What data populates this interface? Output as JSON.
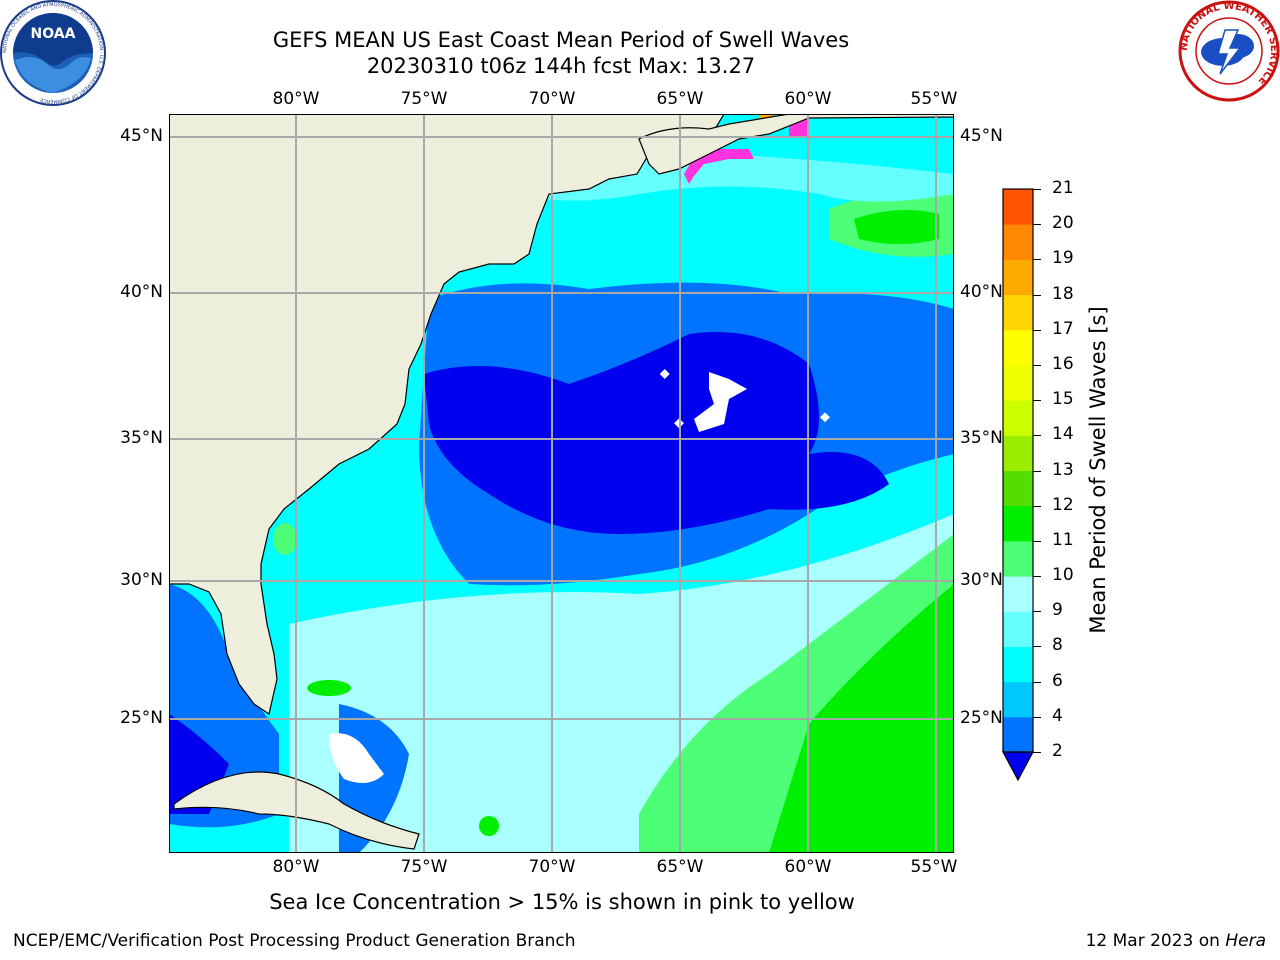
{
  "title": {
    "line1": "GEFS MEAN US East Coast Mean Period of Swell Waves",
    "line2": "20230310 t06z 144h fcst   Max: 13.27"
  },
  "map": {
    "lon_labels": [
      "80°W",
      "75°W",
      "70°W",
      "65°W",
      "60°W",
      "55°W"
    ],
    "lat_labels": [
      "45°N",
      "40°N",
      "35°N",
      "30°N",
      "25°N"
    ],
    "colors": {
      "land": "#eeeedd",
      "grid": "#a8a8a8",
      "no_data": "#ffffff",
      "sea_ice": "#ff33dd"
    }
  },
  "colorbar": {
    "label": "Mean Period of Swell Waves [s]",
    "ticks": [
      "2",
      "4",
      "6",
      "8",
      "9",
      "10",
      "11",
      "12",
      "13",
      "14",
      "15",
      "16",
      "17",
      "18",
      "19",
      "20",
      "21"
    ],
    "colors": [
      "#0073ff",
      "#00c8ff",
      "#00fdff",
      "#66ffff",
      "#aaffff",
      "#4dff77",
      "#00ee00",
      "#55dd00",
      "#99ee00",
      "#ccff00",
      "#eeff00",
      "#ffff00",
      "#ffd500",
      "#ffaa00",
      "#ff8800",
      "#ff5500",
      "#ff2200",
      "#ff0000"
    ],
    "under_color": "#0000ee"
  },
  "note": "Sea Ice Concentration > 15% is shown in pink to yellow",
  "footer": {
    "left": "NCEP/EMC/Verification Post Processing Product Generation Branch",
    "right_prefix": "12 Mar 2023 on ",
    "right_host": "Hera"
  },
  "logos": {
    "noaa": "NOAA",
    "noaa_ring": "NATIONAL OCEANIC AND ATMOSPHERIC ADMINISTRATION · U.S. DEPARTMENT OF COMMERCE",
    "nws_ring": "NATIONAL WEATHER SERVICE"
  }
}
